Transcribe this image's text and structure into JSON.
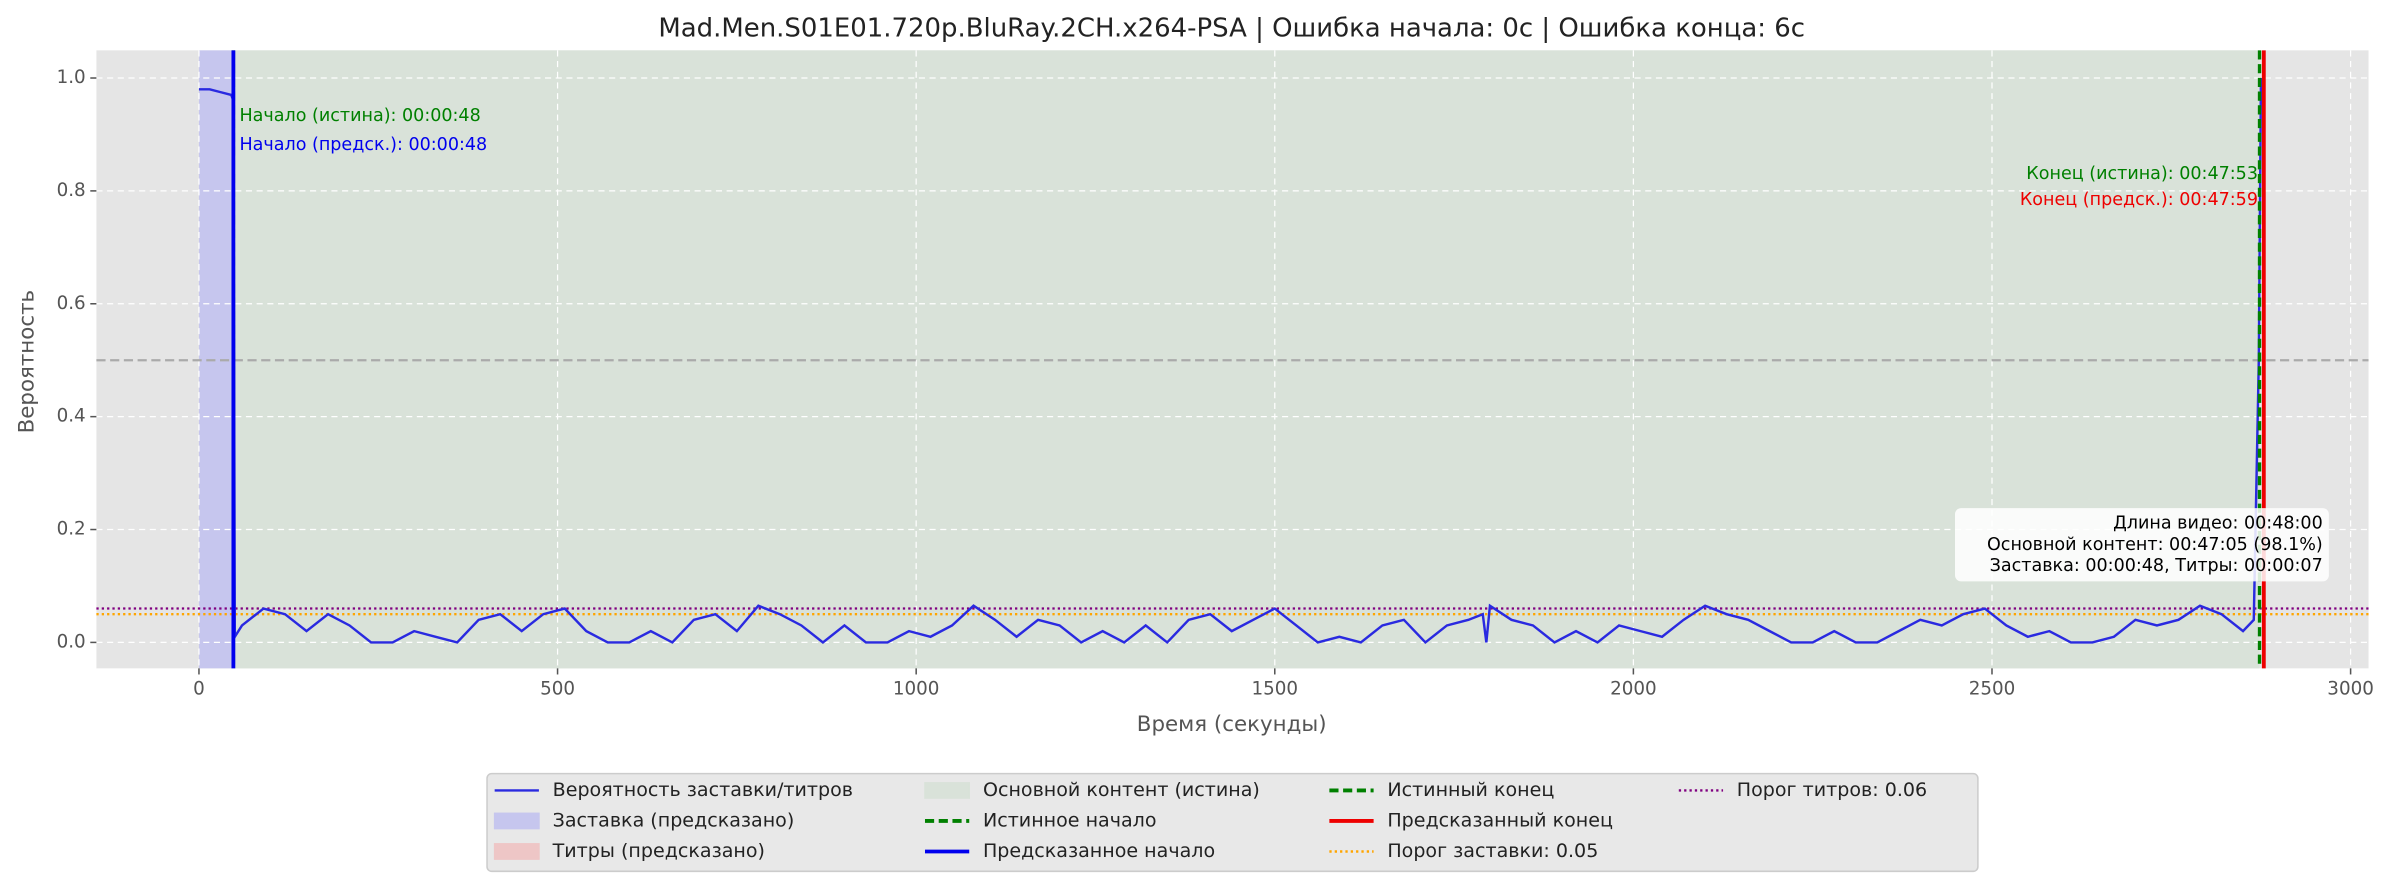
{
  "chart_data": {
    "type": "line",
    "title": "Mad.Men.S01E01.720p.BluRay.2CH.x264-PSA | Ошибка начала: 0с | Ошибка конца: 6с",
    "xlabel": "Время (секунды)",
    "ylabel": "Вероятность",
    "xlim": [
      -143,
      3025
    ],
    "ylim": [
      -0.046,
      1.049
    ],
    "xticks": [
      0,
      500,
      1000,
      1500,
      2000,
      2500,
      3000
    ],
    "yticks": [
      {
        "value": 0,
        "label": "0.0"
      },
      0.2,
      0.4,
      0.6,
      0.8,
      {
        "value": 1,
        "label": "1.0"
      }
    ],
    "grid": true,
    "series": [
      {
        "name": "Вероятность заставки/титров",
        "color": "#2a2ae0",
        "x": [
          0,
          15,
          30,
          45,
          48,
          50,
          60,
          90,
          120,
          150,
          180,
          210,
          240,
          270,
          300,
          330,
          360,
          390,
          420,
          450,
          480,
          510,
          540,
          570,
          600,
          630,
          660,
          690,
          720,
          750,
          780,
          810,
          840,
          870,
          900,
          930,
          960,
          990,
          1020,
          1050,
          1080,
          1110,
          1140,
          1170,
          1200,
          1230,
          1260,
          1290,
          1320,
          1350,
          1380,
          1410,
          1440,
          1470,
          1500,
          1530,
          1560,
          1590,
          1620,
          1650,
          1680,
          1710,
          1740,
          1770,
          1790,
          1795,
          1800,
          1830,
          1860,
          1890,
          1920,
          1950,
          1980,
          2010,
          2040,
          2070,
          2100,
          2130,
          2160,
          2190,
          2220,
          2250,
          2280,
          2310,
          2340,
          2370,
          2400,
          2430,
          2460,
          2490,
          2520,
          2550,
          2580,
          2610,
          2640,
          2670,
          2700,
          2730,
          2760,
          2790,
          2820,
          2850,
          2865,
          2872,
          2875
        ],
        "values": [
          0.98,
          0.98,
          0.975,
          0.97,
          0.96,
          0.01,
          0.03,
          0.06,
          0.05,
          0.02,
          0.05,
          0.03,
          0.0,
          0.0,
          0.02,
          0.01,
          0.0,
          0.04,
          0.05,
          0.02,
          0.05,
          0.06,
          0.02,
          0.0,
          0.0,
          0.02,
          0.0,
          0.04,
          0.05,
          0.02,
          0.065,
          0.05,
          0.03,
          0.0,
          0.03,
          0.0,
          0.0,
          0.02,
          0.01,
          0.03,
          0.065,
          0.04,
          0.01,
          0.04,
          0.03,
          0.0,
          0.02,
          0.0,
          0.03,
          0.0,
          0.04,
          0.05,
          0.02,
          0.04,
          0.06,
          0.03,
          0.0,
          0.01,
          0.0,
          0.03,
          0.04,
          0.0,
          0.03,
          0.04,
          0.05,
          0.0,
          0.065,
          0.04,
          0.03,
          0.0,
          0.02,
          0.0,
          0.03,
          0.02,
          0.01,
          0.04,
          0.065,
          0.05,
          0.04,
          0.02,
          0.0,
          0.0,
          0.02,
          0.0,
          0.0,
          0.02,
          0.04,
          0.03,
          0.05,
          0.06,
          0.03,
          0.01,
          0.02,
          0.0,
          0.0,
          0.01,
          0.04,
          0.03,
          0.04,
          0.065,
          0.05,
          0.02,
          0.04,
          0.5,
          1.0
        ]
      }
    ],
    "regions": [
      {
        "name": "Заставка (предсказано)",
        "color": "#c6c6ee",
        "from": 0,
        "to": 48
      },
      {
        "name": "Титры (предсказано)",
        "color": "#eec6c6",
        "from": 2879,
        "to": 2880
      },
      {
        "name": "Основной контент (истина)",
        "color": "#d9e2d9",
        "from": 48,
        "to": 2873
      }
    ],
    "vlines": [
      {
        "name": "Истинное начало",
        "color": "#008000",
        "style": "dashed",
        "x": 48
      },
      {
        "name": "Предсказанное начало",
        "color": "#0000ee",
        "style": "solid",
        "x": 48
      },
      {
        "name": "Истинный конец",
        "color": "#008000",
        "style": "dashed",
        "x": 2873
      },
      {
        "name": "Предсказанный конец",
        "color": "#ee0000",
        "style": "solid",
        "x": 2879
      }
    ],
    "hlines": [
      {
        "name": "Порог заставки: 0.05",
        "color": "#ffa500",
        "style": "dotted",
        "y": 0.05
      },
      {
        "name": "Порог титров: 0.06",
        "color": "#800080",
        "style": "dotted",
        "y": 0.06
      }
    ],
    "reference_lines": [
      {
        "y": 0.5,
        "color": "#aaaaaa",
        "style": "dashed"
      }
    ],
    "annotations": [
      {
        "text": "Начало (истина): 00:00:48",
        "color": "#008000"
      },
      {
        "text": "Начало (предск.): 00:00:48",
        "color": "#0000ee"
      },
      {
        "text": "Конец (истина): 00:47:53",
        "color": "#008000"
      },
      {
        "text": "Конец (предск.): 00:47:59",
        "color": "#ee0000"
      }
    ],
    "info": [
      "Длина видео: 00:48:00",
      "Основной контент: 00:47:05 (98.1%)",
      "Заставка: 00:00:48, Титры: 00:00:07"
    ]
  }
}
